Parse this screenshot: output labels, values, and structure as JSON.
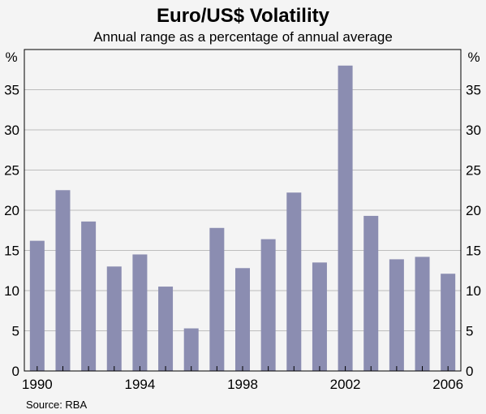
{
  "chart_data": {
    "type": "bar",
    "title": "Euro/US$ Volatility",
    "subtitle": "Annual range as a percentage of annual average",
    "ylabel_left": "%",
    "ylabel_right": "%",
    "source": "Source: RBA",
    "x": [
      1990,
      1991,
      1992,
      1993,
      1994,
      1995,
      1996,
      1997,
      1998,
      1999,
      2000,
      2001,
      2002,
      2003,
      2004,
      2005,
      2006
    ],
    "x_tick_labels": [
      "1990",
      "1994",
      "1998",
      "2002",
      "2006"
    ],
    "values": [
      16.2,
      22.5,
      18.6,
      13.0,
      14.5,
      10.5,
      5.3,
      17.8,
      12.8,
      16.4,
      22.2,
      13.5,
      38.0,
      19.3,
      13.9,
      14.2,
      12.1
    ],
    "ylim": [
      0,
      40
    ],
    "yticks": [
      0,
      5,
      10,
      15,
      20,
      25,
      30,
      35
    ],
    "grid": true,
    "colors": {
      "bar": "#8b8db1",
      "grid": "#bdbdbd",
      "plot_bg": "#f4f4f4",
      "axis": "#000000"
    }
  }
}
